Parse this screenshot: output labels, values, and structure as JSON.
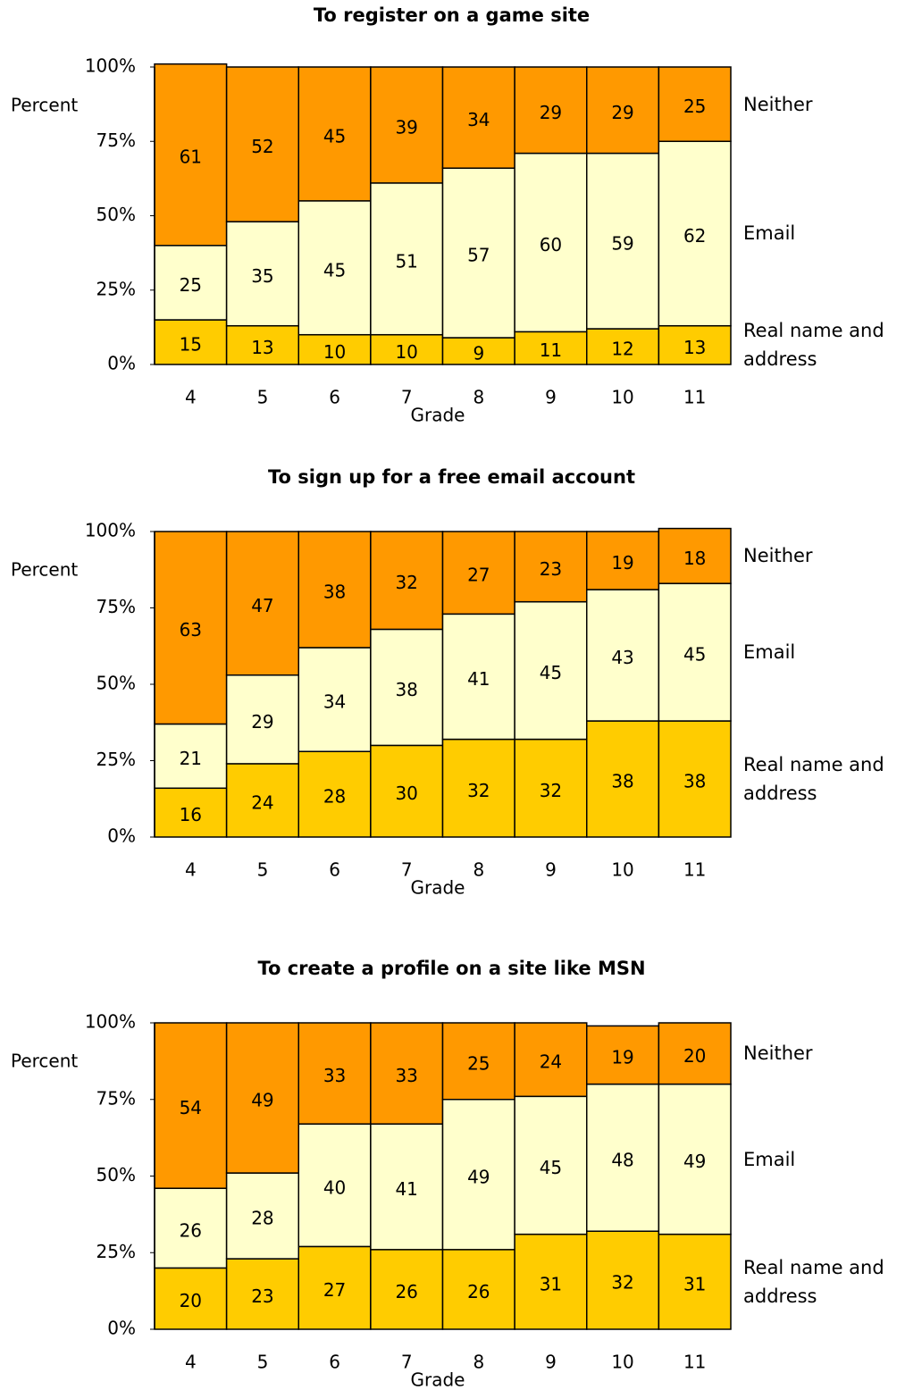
{
  "chart_data": [
    {
      "type": "bar",
      "stacked": true,
      "title": "To register on a game site",
      "ylabel": "Percent",
      "xlabel": "Grade",
      "categories": [
        "4",
        "5",
        "6",
        "7",
        "8",
        "9",
        "10",
        "11"
      ],
      "series": [
        {
          "name": "Real name and address",
          "color": "#ffcc00",
          "values": [
            15,
            13,
            10,
            10,
            9,
            11,
            12,
            13
          ]
        },
        {
          "name": "Email",
          "color": "#ffffcc",
          "values": [
            25,
            35,
            45,
            51,
            57,
            60,
            59,
            62
          ]
        },
        {
          "name": "Neither",
          "color": "#ff9900",
          "values": [
            61,
            52,
            45,
            39,
            34,
            29,
            29,
            25
          ]
        }
      ],
      "ylim": [
        0,
        100
      ],
      "yticks": [
        {
          "value": 0,
          "label": "0%"
        },
        {
          "value": 25,
          "label": "25%"
        },
        {
          "value": 50,
          "label": "50%"
        },
        {
          "value": 75,
          "label": "75%"
        },
        {
          "value": 100,
          "label": "100%"
        }
      ]
    },
    {
      "type": "bar",
      "stacked": true,
      "title": "To sign up for a free email account",
      "ylabel": "Percent",
      "xlabel": "Grade",
      "categories": [
        "4",
        "5",
        "6",
        "7",
        "8",
        "9",
        "10",
        "11"
      ],
      "series": [
        {
          "name": "Real name and address",
          "color": "#ffcc00",
          "values": [
            16,
            24,
            28,
            30,
            32,
            32,
            38,
            38
          ]
        },
        {
          "name": "Email",
          "color": "#ffffcc",
          "values": [
            21,
            29,
            34,
            38,
            41,
            45,
            43,
            45
          ]
        },
        {
          "name": "Neither",
          "color": "#ff9900",
          "values": [
            63,
            47,
            38,
            32,
            27,
            23,
            19,
            18
          ]
        }
      ],
      "ylim": [
        0,
        100
      ],
      "yticks": [
        {
          "value": 0,
          "label": "0%"
        },
        {
          "value": 25,
          "label": "25%"
        },
        {
          "value": 50,
          "label": "50%"
        },
        {
          "value": 75,
          "label": "75%"
        },
        {
          "value": 100,
          "label": "100%"
        }
      ]
    },
    {
      "type": "bar",
      "stacked": true,
      "title": "To create a profile on a site like MSN",
      "ylabel": "Percent",
      "xlabel": "Grade",
      "categories": [
        "4",
        "5",
        "6",
        "7",
        "8",
        "9",
        "10",
        "11"
      ],
      "series": [
        {
          "name": "Real name and address",
          "color": "#ffcc00",
          "values": [
            20,
            23,
            27,
            26,
            26,
            31,
            32,
            31
          ]
        },
        {
          "name": "Email",
          "color": "#ffffcc",
          "values": [
            26,
            28,
            40,
            41,
            49,
            45,
            48,
            49
          ]
        },
        {
          "name": "Neither",
          "color": "#ff9900",
          "values": [
            54,
            49,
            33,
            33,
            25,
            24,
            19,
            20
          ]
        }
      ],
      "ylim": [
        0,
        100
      ],
      "yticks": [
        {
          "value": 0,
          "label": "0%"
        },
        {
          "value": 25,
          "label": "25%"
        },
        {
          "value": 50,
          "label": "50%"
        },
        {
          "value": 75,
          "label": "75%"
        },
        {
          "value": 100,
          "label": "100%"
        }
      ]
    }
  ]
}
